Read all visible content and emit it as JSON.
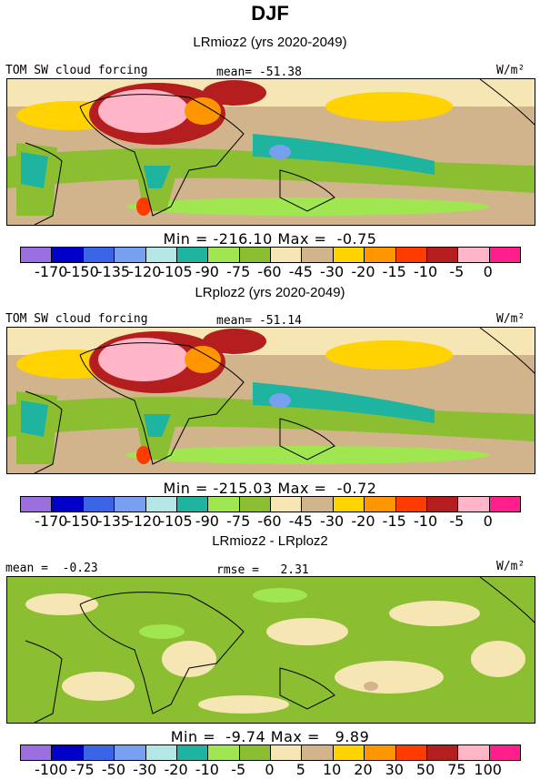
{
  "figure": {
    "title": "DJF"
  },
  "colors": [
    "#9b6fe0",
    "#0000c8",
    "#3c64e6",
    "#78a0f0",
    "#b4e6e6",
    "#1eb4a0",
    "#a0e650",
    "#8cbe32",
    "#f5e6b4",
    "#d2b48c",
    "#ffd200",
    "#ff9600",
    "#ff3c00",
    "#b41e1e",
    "#ffb4c8",
    "#ff1e8c"
  ],
  "panels": [
    {
      "title": "LRmioz2 (yrs 2020-2049)",
      "left_label": "TOM SW cloud forcing",
      "center_label": "mean= -51.38",
      "units": "W/m²",
      "minmax": "Min = -216.10 Max =  -0.75",
      "ticks": [
        "-170",
        "-150",
        "-135",
        "-120",
        "-105",
        "-90",
        "-75",
        "-60",
        "-45",
        "-30",
        "-20",
        "-15",
        "-10",
        "-5",
        "0"
      ]
    },
    {
      "title": "LRploz2 (yrs 2020-2049)",
      "left_label": "TOM SW cloud forcing",
      "center_label": "mean= -51.14",
      "units": "W/m²",
      "minmax": "Min = -215.03 Max =  -0.72",
      "ticks": [
        "-170",
        "-150",
        "-135",
        "-120",
        "-105",
        "-90",
        "-75",
        "-60",
        "-45",
        "-30",
        "-20",
        "-15",
        "-10",
        "-5",
        "0"
      ]
    },
    {
      "title": "LRmioz2 - LRploz2",
      "left_label": "mean =  -0.23",
      "center_label": "rmse =   2.31",
      "units": "W/m²",
      "minmax": "Min =  -9.74 Max =   9.89",
      "ticks": [
        "-100",
        "-75",
        "-50",
        "-30",
        "-20",
        "-10",
        "-5",
        "0",
        "5",
        "10",
        "20",
        "30",
        "50",
        "75",
        "100"
      ]
    }
  ],
  "chart_data": [
    {
      "type": "heatmap",
      "title": "LRmioz2 (yrs 2020-2049)",
      "variable": "TOM SW cloud forcing",
      "units": "W/m²",
      "mean": -51.38,
      "min": -216.1,
      "max": -0.75,
      "contour_levels": [
        -170,
        -150,
        -135,
        -120,
        -105,
        -90,
        -75,
        -60,
        -45,
        -30,
        -20,
        -15,
        -10,
        -5,
        0
      ]
    },
    {
      "type": "heatmap",
      "title": "LRploz2 (yrs 2020-2049)",
      "variable": "TOM SW cloud forcing",
      "units": "W/m²",
      "mean": -51.14,
      "min": -215.03,
      "max": -0.72,
      "contour_levels": [
        -170,
        -150,
        -135,
        -120,
        -105,
        -90,
        -75,
        -60,
        -45,
        -30,
        -20,
        -15,
        -10,
        -5,
        0
      ]
    },
    {
      "type": "heatmap",
      "title": "LRmioz2 - LRploz2",
      "units": "W/m²",
      "mean": -0.23,
      "rmse": 2.31,
      "min": -9.74,
      "max": 9.89,
      "contour_levels": [
        -100,
        -75,
        -50,
        -30,
        -20,
        -10,
        -5,
        0,
        5,
        10,
        20,
        30,
        50,
        75,
        100
      ]
    }
  ]
}
